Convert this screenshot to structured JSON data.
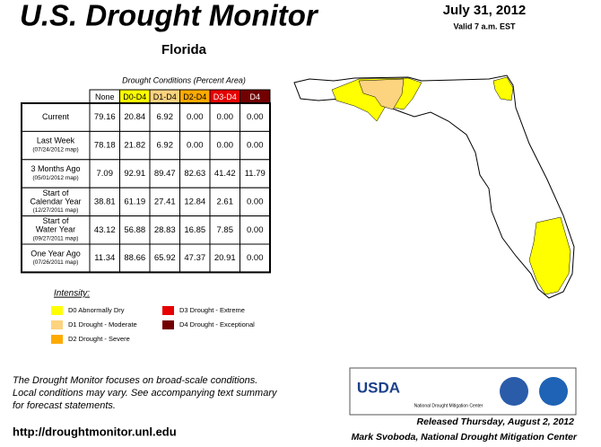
{
  "header": {
    "title": "U.S. Drought Monitor",
    "date": "July 31, 2012",
    "valid": "Valid 7 a.m. EST",
    "region": "Florida"
  },
  "table": {
    "caption": "Drought Conditions (Percent Area)",
    "columns": [
      "None",
      "D0-D4",
      "D1-D4",
      "D2-D4",
      "D3-D4",
      "D4"
    ],
    "rows": [
      {
        "label": "Current",
        "values": [
          "79.16",
          "20.84",
          "6.92",
          "0.00",
          "0.00",
          "0.00"
        ]
      },
      {
        "label": "Last Week",
        "sublabel": "(07/24/2012 map)",
        "values": [
          "78.18",
          "21.82",
          "6.92",
          "0.00",
          "0.00",
          "0.00"
        ]
      },
      {
        "label": "3 Months Ago",
        "sublabel": "(05/01/2012 map)",
        "values": [
          "7.09",
          "92.91",
          "89.47",
          "82.63",
          "41.42",
          "11.79"
        ]
      },
      {
        "label": "Start of",
        "label2": "Calendar Year",
        "sublabel": "(12/27/2011 map)",
        "values": [
          "38.81",
          "61.19",
          "27.41",
          "12.84",
          "2.61",
          "0.00"
        ]
      },
      {
        "label": "Start of",
        "label2": "Water Year",
        "sublabel": "(09/27/2011 map)",
        "values": [
          "43.12",
          "56.88",
          "28.83",
          "16.85",
          "7.85",
          "0.00"
        ]
      },
      {
        "label": "One Year Ago",
        "sublabel": "(07/26/2011 map)",
        "values": [
          "11.34",
          "88.66",
          "65.92",
          "47.37",
          "20.91",
          "0.00"
        ]
      }
    ]
  },
  "legend": {
    "title": "Intensity:",
    "items": [
      {
        "label": "D0 Abnormally Dry",
        "color": "#ffff00"
      },
      {
        "label": "D1 Drought - Moderate",
        "color": "#fcd37f"
      },
      {
        "label": "D2 Drought - Severe",
        "color": "#ffaa00"
      },
      {
        "label": "D3 Drought - Extreme",
        "color": "#e60000"
      },
      {
        "label": "D4 Drought - Exceptional",
        "color": "#730000"
      }
    ]
  },
  "footer": {
    "note": [
      "The Drought Monitor focuses on broad-scale conditions.",
      "Local conditions may vary. See accompanying text summary",
      "for forecast statements."
    ],
    "url": "http://droughtmonitor.unl.edu",
    "released": "Released Thursday, August 2, 2012",
    "author": "Mark Svoboda, National Drought Mitigation Center",
    "logos": [
      "USDA",
      "National Drought Mitigation Center"
    ]
  }
}
